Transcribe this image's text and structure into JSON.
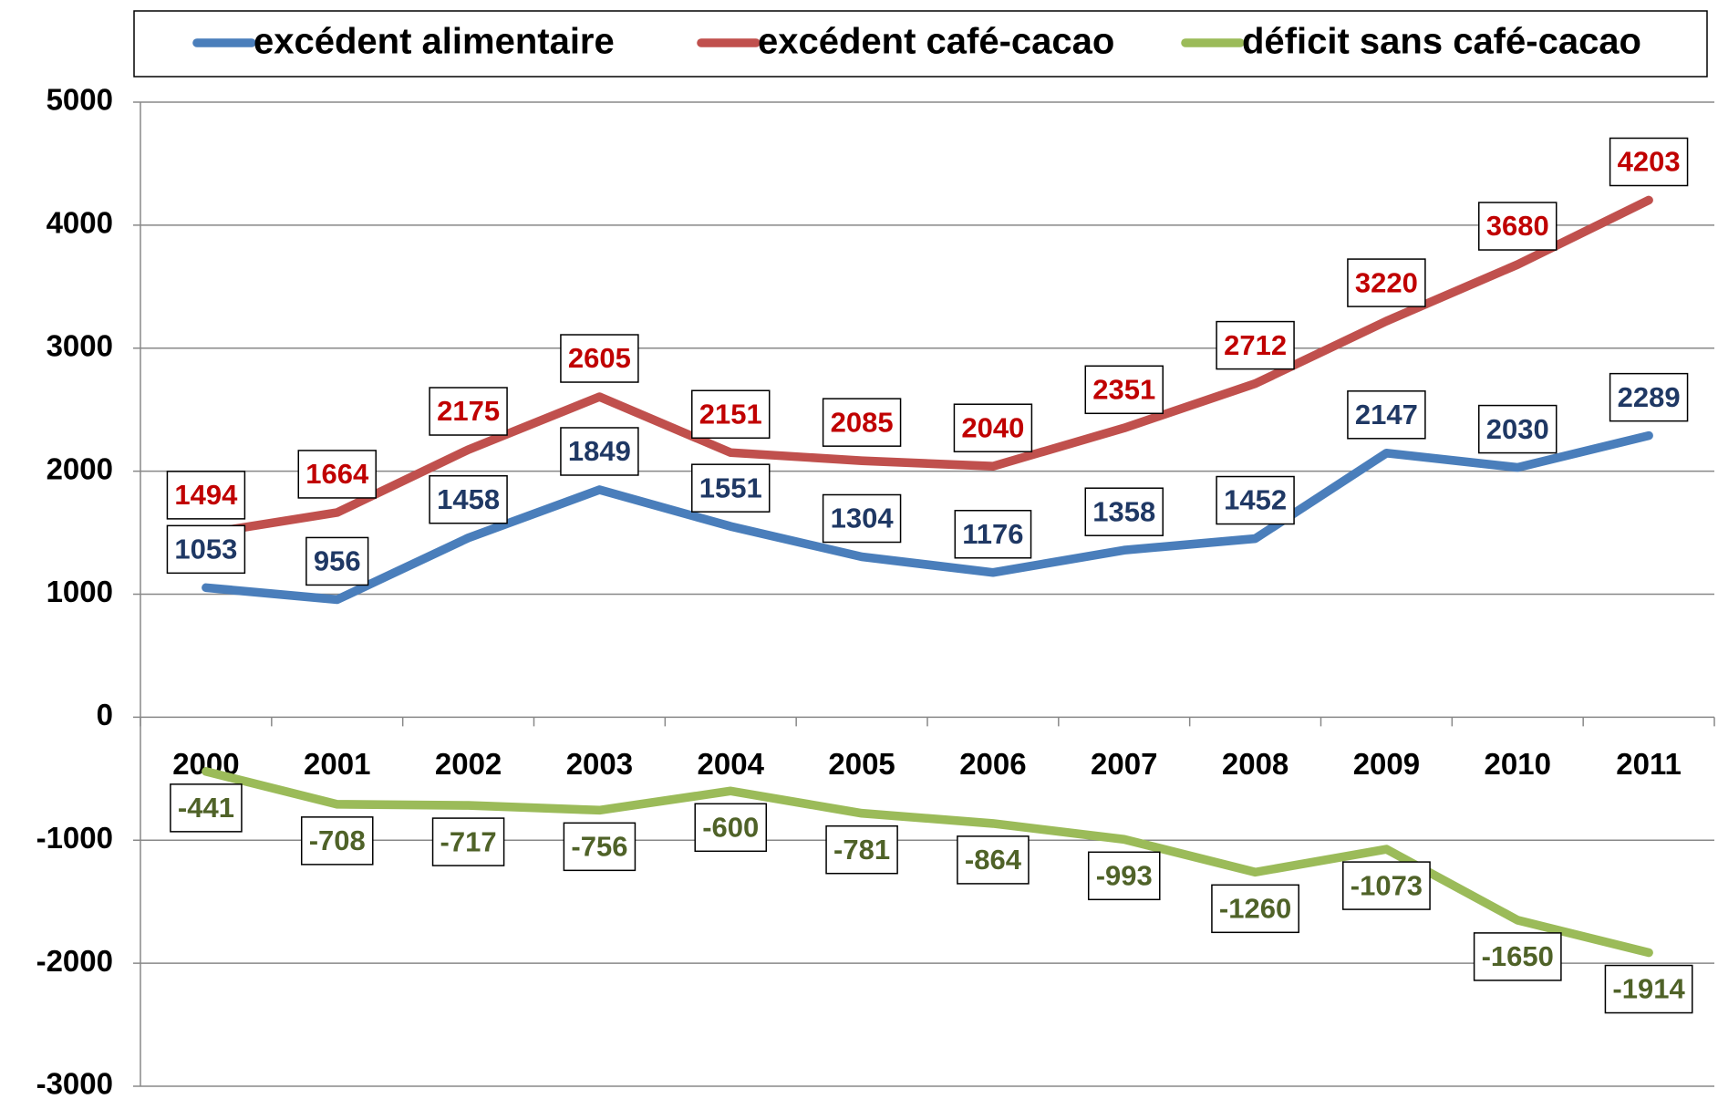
{
  "chart_data": {
    "type": "line",
    "categories": [
      "2000",
      "2001",
      "2002",
      "2003",
      "2004",
      "2005",
      "2006",
      "2007",
      "2008",
      "2009",
      "2010",
      "2011"
    ],
    "series": [
      {
        "name": "excédent alimentaire",
        "color": "#4a7ebb",
        "label_color": "#1f3864",
        "values": [
          1053,
          956,
          1458,
          1849,
          1551,
          1304,
          1176,
          1358,
          1452,
          2147,
          2030,
          2289
        ]
      },
      {
        "name": "excédent café-cacao",
        "color": "#c0504d",
        "label_color": "#c00000",
        "values": [
          1494,
          1664,
          2175,
          2605,
          2151,
          2085,
          2040,
          2351,
          2712,
          3220,
          3680,
          4203
        ]
      },
      {
        "name": "déficit sans café-cacao",
        "color": "#9bbb59",
        "label_color": "#4f6228",
        "values": [
          -441,
          -708,
          -717,
          -756,
          -600,
          -781,
          -864,
          -993,
          -1260,
          -1073,
          -1650,
          -1914
        ]
      }
    ],
    "ylim": [
      -3000,
      5000
    ],
    "yticks": [
      -3000,
      -2000,
      -1000,
      0,
      1000,
      2000,
      3000,
      4000,
      5000
    ],
    "grid": true,
    "legend": "top"
  }
}
